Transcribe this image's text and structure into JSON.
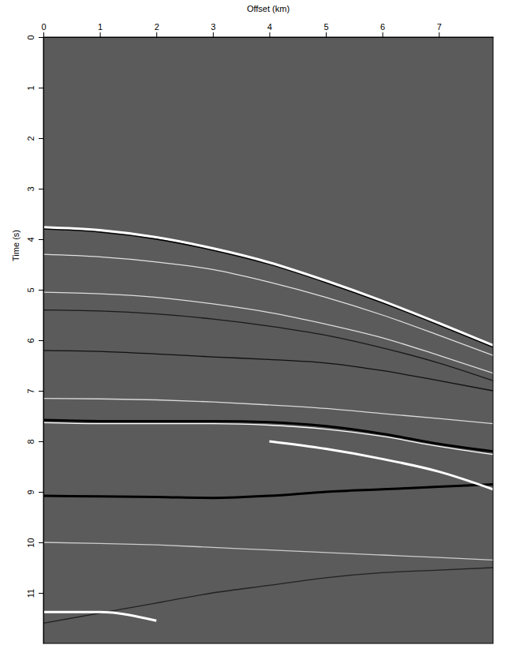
{
  "chart_data": {
    "type": "line",
    "x_label": "Offset (km)",
    "y_label": "Time (s)",
    "x": [
      0,
      1,
      2,
      3,
      4,
      5,
      6,
      7,
      7.96
    ],
    "xlim": [
      0,
      7.96
    ],
    "xticks": [
      0,
      1,
      2,
      3,
      4,
      5,
      6,
      7
    ],
    "ylim": [
      0,
      12
    ],
    "yticks": [
      0,
      1,
      2,
      3,
      4,
      5,
      6,
      7,
      8,
      9,
      10,
      11
    ],
    "grid": false,
    "series": [
      {
        "color": "#ffffff",
        "line_style": "thick",
        "values": [
          3.76,
          3.82,
          3.96,
          4.18,
          4.46,
          4.82,
          5.22,
          5.66,
          6.1
        ]
      },
      {
        "color": "#000000",
        "line_style": "solid",
        "values": [
          3.8,
          3.86,
          4.0,
          4.22,
          4.5,
          4.86,
          5.26,
          5.7,
          6.14
        ]
      },
      {
        "color": "#e0e0e0",
        "line_style": "solid",
        "values": [
          4.3,
          4.35,
          4.45,
          4.6,
          4.85,
          5.15,
          5.5,
          5.9,
          6.3
        ]
      },
      {
        "color": "#dddddd",
        "line_style": "solid",
        "values": [
          5.05,
          5.08,
          5.15,
          5.28,
          5.45,
          5.68,
          5.95,
          6.3,
          6.65
        ]
      },
      {
        "color": "#1a1a1a",
        "line_style": "solid",
        "values": [
          5.4,
          5.42,
          5.48,
          5.58,
          5.72,
          5.9,
          6.15,
          6.45,
          6.8
        ]
      },
      {
        "color": "#111111",
        "line_style": "solid",
        "values": [
          6.2,
          6.22,
          6.27,
          6.33,
          6.38,
          6.45,
          6.6,
          6.8,
          7.0
        ]
      },
      {
        "color": "#d8d8d8",
        "line_style": "solid",
        "values": [
          7.15,
          7.16,
          7.18,
          7.22,
          7.28,
          7.35,
          7.45,
          7.55,
          7.65
        ]
      },
      {
        "color": "#000000",
        "line_style": "thick",
        "values": [
          7.58,
          7.6,
          7.6,
          7.6,
          7.62,
          7.7,
          7.85,
          8.05,
          8.2
        ]
      },
      {
        "color": "#ffffff",
        "line_style": "solid",
        "values": [
          7.63,
          7.65,
          7.65,
          7.65,
          7.68,
          7.76,
          7.9,
          8.1,
          8.26
        ]
      },
      {
        "color": "#000000",
        "line_style": "thick",
        "values": [
          9.08,
          9.09,
          9.1,
          9.12,
          9.08,
          9.0,
          8.95,
          8.9,
          8.85
        ]
      },
      {
        "color": "#ffffff",
        "line_style": "thick",
        "values": [
          null,
          null,
          null,
          null,
          8.0,
          8.15,
          8.35,
          8.6,
          8.95
        ]
      },
      {
        "color": "#cccccc",
        "line_style": "solid",
        "values": [
          10.0,
          10.02,
          10.05,
          10.1,
          10.15,
          10.2,
          10.25,
          10.3,
          10.35
        ]
      },
      {
        "color": "#222222",
        "line_style": "solid",
        "values": [
          11.6,
          11.4,
          11.2,
          11.0,
          10.85,
          10.7,
          10.6,
          10.55,
          10.5
        ]
      },
      {
        "color": "#ffffff",
        "line_style": "thick",
        "values": [
          11.38,
          11.38,
          11.55,
          null,
          null,
          null,
          null,
          null,
          null
        ]
      }
    ]
  }
}
